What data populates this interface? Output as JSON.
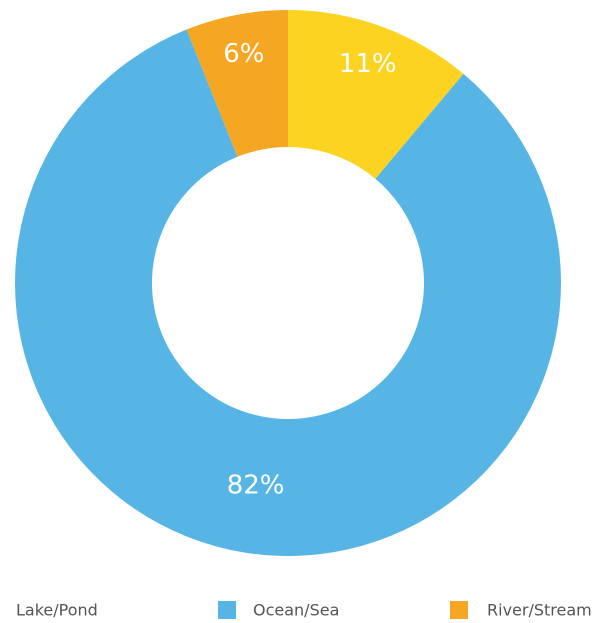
{
  "chart_data": {
    "type": "pie",
    "style": "donut",
    "title": "",
    "slices": [
      {
        "label": "Lake/Pond",
        "value": 11,
        "display": "11%",
        "color": "#FBD320"
      },
      {
        "label": "Ocean/Sea",
        "value": 82,
        "display": "82%",
        "color": "#57B5E6"
      },
      {
        "label": "River/Stream",
        "value": 6,
        "display": "6%",
        "color": "#F5A623"
      }
    ],
    "legend": {
      "position": "bottom",
      "items": [
        {
          "label": "Lake/Pond",
          "color": "#FBD320"
        },
        {
          "label": "Ocean/Sea",
          "color": "#57B5E6"
        },
        {
          "label": "River/Stream",
          "color": "#F5A623"
        }
      ]
    }
  }
}
